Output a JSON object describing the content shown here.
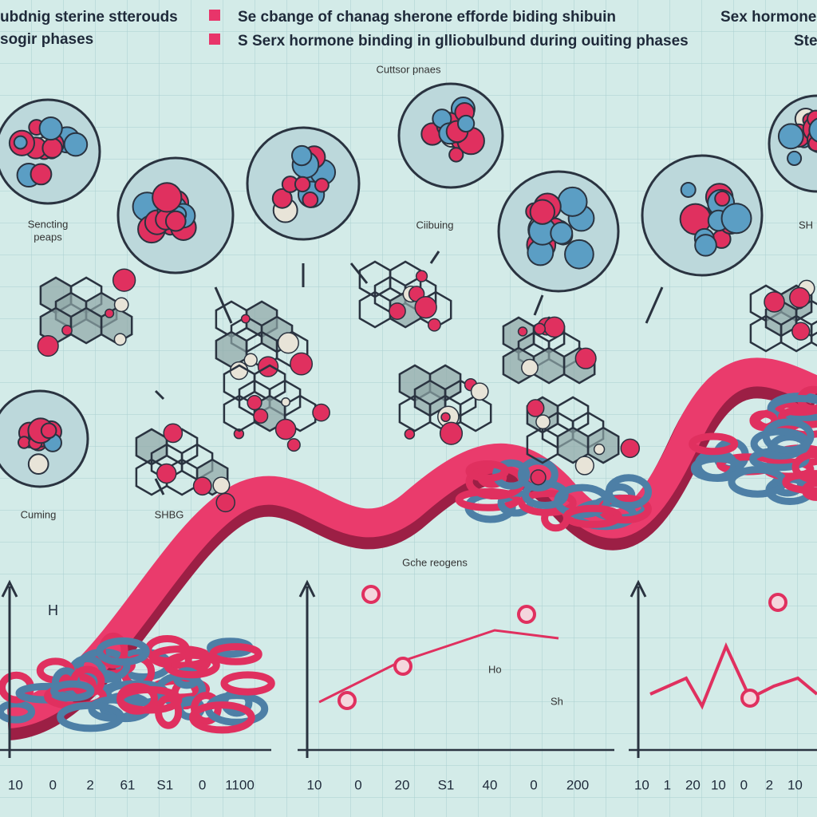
{
  "header": {
    "left_lines": [
      "ubdnig sterine stterouds",
      "sogir phases"
    ],
    "legend": [
      {
        "text": "Se cbange of chanag sherone efforde biding shibuin",
        "color": "#e8356a"
      },
      {
        "text": "S Serx hormone binding in glliobulbund during ouiting phases",
        "color": "#e8356a"
      }
    ],
    "right_lines": [
      "Sex hormone r",
      "Ste"
    ]
  },
  "subtitle": "Cuttsor pnaes",
  "labels": {
    "sencting": [
      "Sencting",
      "peaps"
    ],
    "ciibuing": "Ciibuing",
    "sh": "SH",
    "cuming": "Cuming",
    "shbg": "SHBG",
    "gche": "Gche reogens",
    "h": "H",
    "ho": "Ho",
    "sh2": "Sh"
  },
  "panels": [
    {
      "ticks": [
        "10",
        "0",
        "2",
        "61",
        "S1",
        "0",
        "1100"
      ]
    },
    {
      "ticks": [
        "10",
        "0",
        "20",
        "S1",
        "40",
        "0",
        "200"
      ]
    },
    {
      "ticks": [
        "10",
        "1",
        "20",
        "10",
        "0",
        "2",
        "10"
      ]
    }
  ]
}
